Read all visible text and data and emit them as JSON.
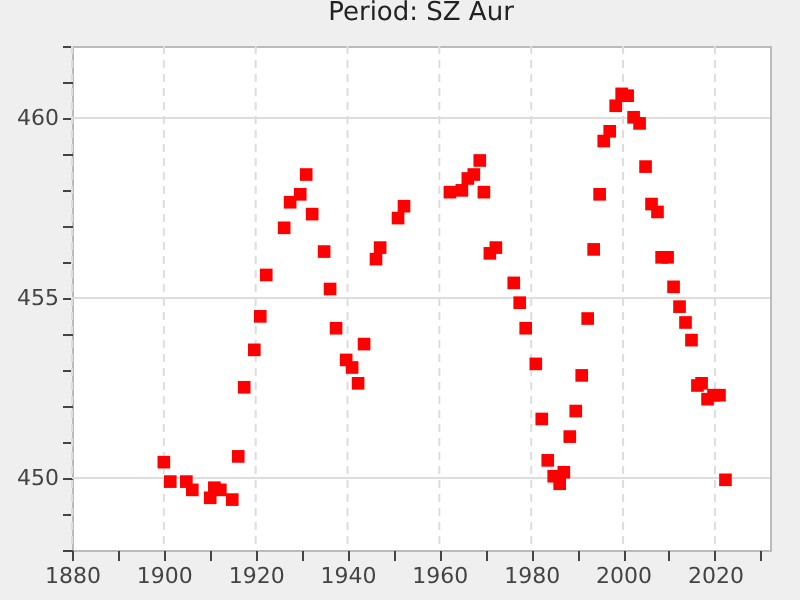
{
  "chart_data": {
    "type": "scatter",
    "title": "Period: SZ Aur",
    "marker": "square",
    "grid": true,
    "xlim": [
      1880,
      2032
    ],
    "ylim": [
      448,
      462
    ],
    "xticks": [
      1880,
      {
        "value": 1890,
        "label": null
      },
      1900,
      {
        "value": 1910,
        "label": null
      },
      1920,
      {
        "value": 1930,
        "label": null
      },
      1940,
      {
        "value": 1950,
        "label": null
      },
      1960,
      {
        "value": 1970,
        "label": null
      },
      1980,
      {
        "value": 1990,
        "label": null
      },
      2000,
      {
        "value": 2010,
        "label": null
      },
      2020,
      {
        "value": 2030,
        "label": null
      }
    ],
    "yticks": [
      {
        "value": 448,
        "label": null
      },
      {
        "value": 449,
        "label": null
      },
      450,
      {
        "value": 451,
        "label": null
      },
      {
        "value": 452,
        "label": null
      },
      {
        "value": 453,
        "label": null
      },
      {
        "value": 454,
        "label": null
      },
      455,
      {
        "value": 456,
        "label": null
      },
      {
        "value": 457,
        "label": null
      },
      {
        "value": 458,
        "label": null
      },
      {
        "value": 459,
        "label": null
      },
      460,
      {
        "value": 461,
        "label": null
      },
      {
        "value": 462,
        "label": null
      }
    ],
    "series": [
      {
        "color": "#ff0000",
        "x": [
          1900.0,
          1901.4,
          1904.9,
          1906.2,
          1910.1,
          1911.0,
          1912.3,
          1914.9,
          1916.2,
          1917.5,
          1919.7,
          1921.0,
          1922.3,
          1926.2,
          1927.5,
          1929.7,
          1931.0,
          1932.3,
          1934.9,
          1936.2,
          1937.5,
          1939.7,
          1941.0,
          1942.3,
          1943.6,
          1946.2,
          1947.1,
          1951.0,
          1952.3,
          1962.3,
          1964.9,
          1966.2,
          1967.5,
          1968.8,
          1969.7,
          1971.0,
          1972.3,
          1976.2,
          1977.5,
          1978.8,
          1981.0,
          1982.3,
          1983.6,
          1984.9,
          1986.2,
          1987.1,
          1988.4,
          1989.7,
          1991.0,
          1992.3,
          1993.6,
          1994.9,
          1995.8,
          1997.1,
          1998.4,
          1999.7,
          2001.0,
          2002.3,
          2003.6,
          2004.9,
          2006.2,
          2007.5,
          2008.4,
          2009.7,
          2011.0,
          2012.3,
          2013.6,
          2014.9,
          2016.2,
          2017.1,
          2018.4,
          2019.7,
          2021.0,
          2022.3
        ],
        "values": [
          450.44,
          449.9,
          449.9,
          449.67,
          449.45,
          449.73,
          449.67,
          449.4,
          450.6,
          452.52,
          453.56,
          454.49,
          455.64,
          456.95,
          457.66,
          457.88,
          458.43,
          457.33,
          456.29,
          455.25,
          454.16,
          453.28,
          453.07,
          452.63,
          453.72,
          456.08,
          456.4,
          457.22,
          457.55,
          457.94,
          457.99,
          458.32,
          458.43,
          458.82,
          457.94,
          456.24,
          456.4,
          455.42,
          454.87,
          454.16,
          453.17,
          451.64,
          450.49,
          450.05,
          449.84,
          450.16,
          451.15,
          451.86,
          452.85,
          454.43,
          456.35,
          457.88,
          459.36,
          459.63,
          460.34,
          460.67,
          460.62,
          460.02,
          459.85,
          458.65,
          457.61,
          457.39,
          456.13,
          456.13,
          455.31,
          454.76,
          454.32,
          453.83,
          452.57,
          452.63,
          452.19,
          452.3,
          452.3,
          449.95
        ]
      }
    ]
  }
}
